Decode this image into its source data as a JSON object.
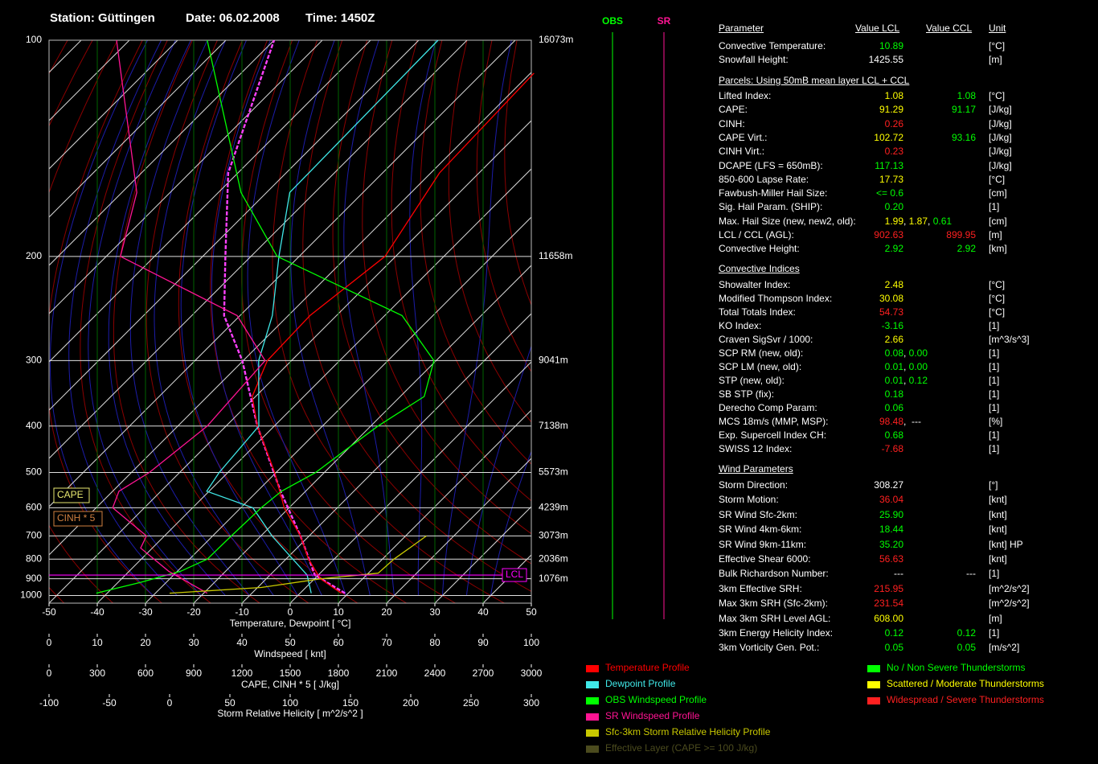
{
  "header": {
    "station": "Station: Güttingen",
    "date": "Date: 06.02.2008",
    "time": "Time: 1450Z"
  },
  "chart_data": {
    "type": "skewt",
    "ylim": [
      1050,
      100
    ],
    "yticks": [
      100,
      200,
      300,
      400,
      500,
      600,
      700,
      800,
      900,
      1000
    ],
    "height_labels": [
      {
        "value": 100,
        "label": "16073m"
      },
      {
        "value": 200,
        "label": "11658m"
      },
      {
        "value": 300,
        "label": "9041m"
      },
      {
        "value": 400,
        "label": "7138m"
      },
      {
        "value": 500,
        "label": "5573m"
      },
      {
        "value": 600,
        "label": "4239m"
      },
      {
        "value": 700,
        "label": "3073m"
      },
      {
        "value": 800,
        "label": "2036m"
      },
      {
        "value": 900,
        "label": "1076m"
      }
    ],
    "xlabel": "Temperature, Dewpoint  [ °C]",
    "xlim": [
      -50,
      50
    ],
    "xticks": [
      -50,
      -40,
      -30,
      -20,
      -10,
      0,
      10,
      20,
      30,
      40,
      50
    ],
    "windspeed_axis": {
      "label": "Windspeed  [ knt]",
      "lim": [
        0,
        100
      ],
      "ticks": [
        0,
        10,
        20,
        30,
        40,
        50,
        60,
        70,
        80,
        90,
        100
      ]
    },
    "cape_axis": {
      "label": "CAPE, CINH * 5  [ J/kg]",
      "lim": [
        0,
        3000
      ],
      "ticks": [
        0,
        300,
        600,
        900,
        1200,
        1500,
        1800,
        2100,
        2400,
        2700,
        3000
      ]
    },
    "srh_axis": {
      "label": "Storm Relative Helicity  [ m^2/s^2 ]",
      "lim": [
        -100,
        300
      ],
      "ticks": [
        -100,
        -50,
        0,
        50,
        100,
        150,
        200,
        250,
        300
      ]
    },
    "series": [
      {
        "name": "Temperature Profile",
        "color": "#ff0000",
        "axis": "temperature",
        "pressure": [
          985,
          900,
          800,
          700,
          600,
          500,
          400,
          350,
          300,
          250,
          200,
          150,
          110
        ],
        "values": [
          8.5,
          1.2,
          -5.3,
          -11.8,
          -21,
          -30.3,
          -43.5,
          -50.7,
          -55,
          -55.5,
          -52.2,
          -58.2,
          -59.3
        ]
      },
      {
        "name": "Dewpoint Profile",
        "color": "#40e8e8",
        "axis": "temperature",
        "pressure": [
          985,
          880,
          700,
          600,
          550,
          500,
          400,
          300,
          250,
          200,
          160,
          100
        ],
        "values": [
          2.3,
          -2.3,
          -17.7,
          -27.5,
          -40.5,
          -41.8,
          -43.2,
          -56.8,
          -63.3,
          -74.2,
          -85.2,
          -86
        ]
      },
      {
        "name": "OBS Windspeed Profile",
        "color": "#00ff00",
        "axis": "windspeed",
        "pressure": [
          985,
          920,
          860,
          800,
          700,
          600,
          550,
          500,
          450,
          400,
          350,
          300,
          250,
          200,
          160,
          100
        ],
        "values": [
          9.8,
          19,
          27.3,
          32.8,
          37.8,
          44,
          48.2,
          55.3,
          61.2,
          68.2,
          77.8,
          79.8,
          73.2,
          47.3,
          39.8,
          32.8
        ]
      },
      {
        "name": "SR Windspeed Profile",
        "color": "#ff1493",
        "axis": "windspeed",
        "pressure": [
          985,
          860,
          750,
          700,
          600,
          550,
          500,
          400,
          300,
          250,
          200,
          160,
          100
        ],
        "values": [
          32.8,
          24.8,
          19,
          20.2,
          13.2,
          14.5,
          20.8,
          32.8,
          44.8,
          39,
          14.8,
          18.2,
          14
        ]
      },
      {
        "name": "Sfc-3km Storm Relative Helicity Profile",
        "color": "#c8c800",
        "axis": "srh",
        "pressure": [
          985,
          950,
          900,
          870,
          800,
          750,
          700
        ],
        "values": [
          0,
          76,
          126,
          173,
          186,
          199,
          213
        ]
      }
    ],
    "parcel": {
      "color": "#ff40ff",
      "axis": "temperature",
      "pressure": [
        985,
        880,
        700,
        550,
        400,
        300,
        250,
        200,
        150,
        100
      ],
      "values": [
        9.3,
        -0.7,
        -11.8,
        -25.2,
        -43.5,
        -60.2,
        -73.3,
        -85.3,
        -102,
        -120
      ]
    },
    "effective_layer": {
      "name": "Effective Layer (CAPE >= 100 J/kg)",
      "color": "#4b4b1e",
      "pressure": [
        990,
        962
      ]
    },
    "lcl": {
      "text": "LCL",
      "color": "#ff00ff",
      "pressure": 880
    },
    "annotations": [
      {
        "text": "CAPE",
        "color": "#e8e870"
      },
      {
        "text": "CINH * 5",
        "color": "#d08040"
      }
    ],
    "columns": [
      {
        "text": "OBS",
        "color": "#00ff00"
      },
      {
        "text": "SR",
        "color": "#ff1493"
      }
    ],
    "severity_legend": [
      {
        "name": "No / Non Severe Thunderstorms",
        "color": "#00ff00"
      },
      {
        "name": "Scattered / Moderate Thunderstorms",
        "color": "#ffff00"
      },
      {
        "name": "Widespread / Severe Thunderstorms",
        "color": "#ff2020"
      }
    ]
  },
  "table": {
    "header": [
      "Parameter",
      "Value LCL",
      "Value CCL",
      "Unit"
    ],
    "sections": [
      {
        "rows": [
          {
            "label": "Convective Temperature:",
            "lcl": [
              {
                "text": "10.89",
                "color": "#00ff00"
              }
            ],
            "unit": "[°C]"
          },
          {
            "label": "Snowfall Height:",
            "lcl": [
              {
                "text": "1425.55",
                "color": "#ffffff"
              }
            ],
            "unit": "[m]"
          }
        ]
      },
      {
        "title": "Parcels: Using 50mB mean layer LCL + CCL",
        "rows": [
          {
            "label": "Lifted Index:",
            "lcl": [
              {
                "text": "1.08",
                "color": "#ffff00"
              }
            ],
            "ccl": [
              {
                "text": "1.08",
                "color": "#00ff00"
              }
            ],
            "unit": "[°C]"
          },
          {
            "label": "CAPE:",
            "lcl": [
              {
                "text": "91.29",
                "color": "#ffff00"
              }
            ],
            "ccl": [
              {
                "text": "91.17",
                "color": "#00ff00"
              }
            ],
            "unit": "[J/kg]"
          },
          {
            "label": "CINH:",
            "lcl": [
              {
                "text": "0.26",
                "color": "#ff2020"
              }
            ],
            "unit": "[J/kg]"
          },
          {
            "label": "CAPE Virt.:",
            "lcl": [
              {
                "text": "102.72",
                "color": "#ffff00"
              }
            ],
            "ccl": [
              {
                "text": "93.16",
                "color": "#00ff00"
              }
            ],
            "unit": "[J/kg]"
          },
          {
            "label": "CINH Virt.:",
            "lcl": [
              {
                "text": "0.23",
                "color": "#ff2020"
              }
            ],
            "unit": "[J/kg]"
          },
          {
            "label": "DCAPE (LFS = 650mB):",
            "lcl": [
              {
                "text": "117.13",
                "color": "#00ff00"
              }
            ],
            "unit": "[J/kg]"
          },
          {
            "label": "850-600 Lapse Rate:",
            "lcl": [
              {
                "text": "17.73",
                "color": "#ffff00"
              }
            ],
            "unit": "[°C]"
          },
          {
            "label": "Fawbush-Miller Hail Size:",
            "lcl": [
              {
                "text": "<= 0.6",
                "color": "#00ff00"
              }
            ],
            "unit": "[cm]"
          },
          {
            "label": "Sig. Hail Param. (SHIP):",
            "lcl": [
              {
                "text": "0.20",
                "color": "#00ff00"
              }
            ],
            "unit": "[1]"
          },
          {
            "label": "Max. Hail Size (new, new2, old):",
            "lcl": [
              {
                "text": "1.99",
                "color": "#ffff00"
              },
              {
                "text": ", ",
                "color": "#ffffff"
              },
              {
                "text": "1.87",
                "color": "#ffff00"
              },
              {
                "text": ", ",
                "color": "#ffffff"
              },
              {
                "text": "0.61",
                "color": "#00ff00"
              }
            ],
            "unit": "[cm]"
          },
          {
            "label": "LCL / CCL (AGL):",
            "lcl": [
              {
                "text": "902.63",
                "color": "#ff2020"
              }
            ],
            "ccl": [
              {
                "text": "899.95",
                "color": "#ff2020"
              }
            ],
            "unit": "[m]"
          },
          {
            "label": "Convective Height:",
            "lcl": [
              {
                "text": "2.92",
                "color": "#00ff00"
              }
            ],
            "ccl": [
              {
                "text": "2.92",
                "color": "#00ff00"
              }
            ],
            "unit": "[km]"
          }
        ]
      },
      {
        "title": "Convective Indices",
        "rows": [
          {
            "label": "Showalter Index:",
            "lcl": [
              {
                "text": "2.48",
                "color": "#ffff00"
              }
            ],
            "unit": "[°C]"
          },
          {
            "label": "Modified Thompson Index:",
            "lcl": [
              {
                "text": "30.08",
                "color": "#ffff00"
              }
            ],
            "unit": "[°C]"
          },
          {
            "label": "Total Totals Index:",
            "lcl": [
              {
                "text": "54.73",
                "color": "#ff2020"
              }
            ],
            "unit": "[°C]"
          },
          {
            "label": "KO Index:",
            "lcl": [
              {
                "text": "-3.16",
                "color": "#00ff00"
              }
            ],
            "unit": "[1]"
          },
          {
            "label": "Craven SigSvr / 1000:",
            "lcl": [
              {
                "text": "2.66",
                "color": "#ffff00"
              }
            ],
            "unit": "[m^3/s^3]"
          },
          {
            "label": "SCP RM (new, old):",
            "lcl": [
              {
                "text": "0.08",
                "color": "#00ff00"
              },
              {
                "text": ", ",
                "color": "#ffffff"
              },
              {
                "text": "0.00",
                "color": "#00ff00"
              }
            ],
            "unit": "[1]"
          },
          {
            "label": "SCP LM (new, old):",
            "lcl": [
              {
                "text": "0.01",
                "color": "#00ff00"
              },
              {
                "text": ", ",
                "color": "#ffffff"
              },
              {
                "text": "0.00",
                "color": "#00ff00"
              }
            ],
            "unit": "[1]"
          },
          {
            "label": "STP (new, old):",
            "lcl": [
              {
                "text": "0.01",
                "color": "#00ff00"
              },
              {
                "text": ", ",
                "color": "#ffffff"
              },
              {
                "text": "0.12",
                "color": "#00ff00"
              }
            ],
            "unit": "[1]"
          },
          {
            "label": "SB STP (fix):",
            "lcl": [
              {
                "text": "0.18",
                "color": "#00ff00"
              }
            ],
            "unit": "[1]"
          },
          {
            "label": "Derecho Comp Param:",
            "lcl": [
              {
                "text": "0.06",
                "color": "#00ff00"
              }
            ],
            "unit": "[1]"
          },
          {
            "label": "MCS 18m/s (MMP, MSP):",
            "lcl": [
              {
                "text": "98.48",
                "color": "#ff2020"
              },
              {
                "text": ",  ---",
                "color": "#ffffff"
              }
            ],
            "unit": "[%]"
          },
          {
            "label": "Exp. Supercell Index CH:",
            "lcl": [
              {
                "text": "0.68",
                "color": "#00ff00"
              }
            ],
            "unit": "[1]"
          },
          {
            "label": "SWISS 12 Index:",
            "lcl": [
              {
                "text": "-7.68",
                "color": "#ff2020"
              }
            ],
            "unit": "[1]"
          }
        ]
      },
      {
        "title": "Wind Parameters",
        "rows": [
          {
            "label": "Storm Direction:",
            "lcl": [
              {
                "text": "308.27",
                "color": "#ffffff"
              }
            ],
            "unit": "[°]"
          },
          {
            "label": "Storm Motion:",
            "lcl": [
              {
                "text": "36.04",
                "color": "#ff2020"
              }
            ],
            "unit": "[knt]"
          },
          {
            "label": "SR Wind Sfc-2km:",
            "lcl": [
              {
                "text": "25.90",
                "color": "#00ff00"
              }
            ],
            "unit": "[knt]"
          },
          {
            "label": "SR Wind 4km-6km:",
            "lcl": [
              {
                "text": "18.44",
                "color": "#00ff00"
              }
            ],
            "unit": "[knt]"
          },
          {
            "label": "SR Wind 9km-11km:",
            "lcl": [
              {
                "text": "35.20",
                "color": "#00ff00"
              }
            ],
            "unit": "[knt] HP"
          },
          {
            "label": "Effective Shear 6000:",
            "lcl": [
              {
                "text": "56.63",
                "color": "#ff2020"
              }
            ],
            "unit": "[knt]"
          },
          {
            "label": "Bulk Richardson Number:",
            "lcl": [
              {
                "text": "---",
                "color": "#ffffff"
              }
            ],
            "ccl": [
              {
                "text": "---",
                "color": "#ffffff"
              }
            ],
            "unit": "[1]"
          },
          {
            "label": "3km Effective SRH:",
            "lcl": [
              {
                "text": "215.95",
                "color": "#ff2020"
              }
            ],
            "unit": "[m^2/s^2]"
          },
          {
            "label": "Max 3km SRH (Sfc-2km):",
            "lcl": [
              {
                "text": "231.54",
                "color": "#ff2020"
              }
            ],
            "unit": "[m^2/s^2]"
          },
          {
            "label": "Max 3km SRH Level AGL:",
            "lcl": [
              {
                "text": "608.00",
                "color": "#ffff00"
              }
            ],
            "unit": "[m]"
          },
          {
            "label": "3km Energy Helicity Index:",
            "lcl": [
              {
                "text": "0.12",
                "color": "#00ff00"
              }
            ],
            "ccl": [
              {
                "text": "0.12",
                "color": "#00ff00"
              }
            ],
            "unit": "[1]"
          },
          {
            "label": "3km Vorticity Gen. Pot.:",
            "lcl": [
              {
                "text": "0.05",
                "color": "#00ff00"
              }
            ],
            "ccl": [
              {
                "text": "0.05",
                "color": "#00ff00"
              }
            ],
            "unit": "[m/s^2]"
          }
        ]
      }
    ]
  }
}
